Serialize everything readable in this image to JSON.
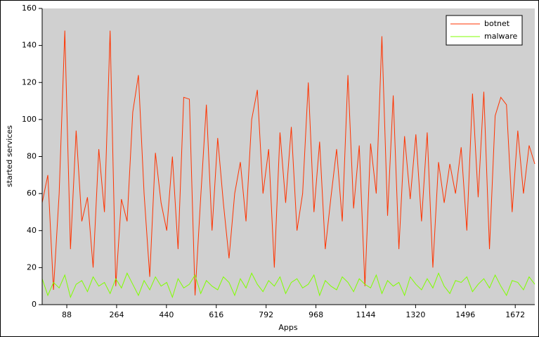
{
  "chart_data": {
    "type": "line",
    "x_label": "Apps",
    "y_label": "started services",
    "x": [
      1,
      21,
      41,
      61,
      81,
      101,
      121,
      141,
      161,
      181,
      201,
      221,
      241,
      261,
      281,
      301,
      321,
      341,
      361,
      381,
      401,
      421,
      441,
      461,
      481,
      501,
      521,
      541,
      561,
      581,
      601,
      621,
      641,
      661,
      681,
      701,
      721,
      741,
      761,
      781,
      801,
      821,
      841,
      861,
      881,
      901,
      921,
      941,
      961,
      981,
      1001,
      1021,
      1041,
      1061,
      1081,
      1101,
      1121,
      1141,
      1161,
      1181,
      1201,
      1221,
      1241,
      1261,
      1281,
      1301,
      1321,
      1341,
      1361,
      1381,
      1401,
      1421,
      1441,
      1461,
      1481,
      1501,
      1521,
      1541,
      1561,
      1581,
      1601,
      1621,
      1641,
      1661,
      1681,
      1701,
      1721,
      1741
    ],
    "series": [
      {
        "name": "botnet",
        "color": "#ff3300",
        "values": [
          55,
          70,
          8,
          60,
          148,
          30,
          94,
          45,
          58,
          20,
          84,
          50,
          148,
          10,
          57,
          45,
          104,
          124,
          60,
          15,
          82,
          55,
          40,
          80,
          30,
          112,
          111,
          5,
          58,
          108,
          40,
          90,
          55,
          25,
          60,
          77,
          45,
          100,
          116,
          60,
          84,
          20,
          93,
          55,
          96,
          40,
          60,
          120,
          50,
          88,
          30,
          58,
          84,
          45,
          124,
          52,
          86,
          10,
          87,
          60,
          145,
          48,
          113,
          30,
          91,
          57,
          92,
          45,
          93,
          20,
          77,
          55,
          76,
          60,
          85,
          40,
          114,
          58,
          115,
          30,
          102,
          112,
          108,
          50,
          94,
          60,
          86,
          76
        ]
      },
      {
        "name": "malware",
        "color": "#80ff00",
        "values": [
          14,
          5,
          12,
          9,
          16,
          4,
          11,
          13,
          7,
          15,
          10,
          12,
          6,
          14,
          9,
          17,
          11,
          5,
          13,
          8,
          15,
          10,
          12,
          4,
          14,
          9,
          11,
          16,
          6,
          13,
          10,
          8,
          15,
          12,
          5,
          14,
          9,
          17,
          11,
          7,
          13,
          10,
          15,
          6,
          12,
          14,
          9,
          11,
          16,
          5,
          13,
          10,
          8,
          15,
          12,
          7,
          14,
          11,
          9,
          16,
          6,
          13,
          10,
          12,
          5,
          15,
          11,
          8,
          14,
          9,
          17,
          10,
          6,
          13,
          12,
          15,
          7,
          11,
          14,
          9,
          16,
          10,
          5,
          13,
          12,
          8,
          15,
          11
        ]
      }
    ],
    "xlim": [
      1,
      1741
    ],
    "xticks": [
      88,
      264,
      440,
      616,
      792,
      968,
      1144,
      1320,
      1496,
      1672
    ],
    "ylim": [
      0,
      160
    ],
    "yticks": [
      0,
      20,
      40,
      60,
      80,
      100,
      120,
      140,
      160
    ],
    "legend": "upper right",
    "plot_background": "#d0d0d0"
  }
}
